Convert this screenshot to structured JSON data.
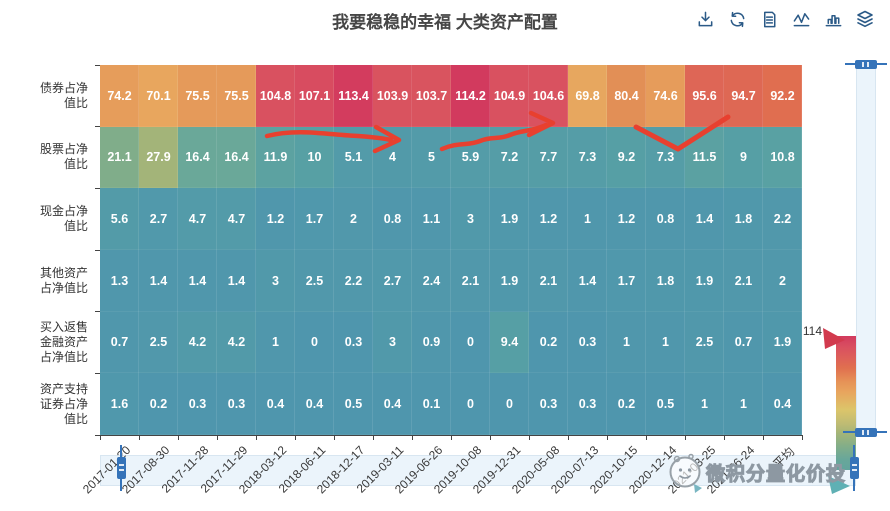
{
  "title": "我要稳稳的幸福 大类资产配置",
  "toolbar": {
    "icons": [
      "save-as-image",
      "restore",
      "data-view",
      "switch-to-line",
      "switch-to-bar",
      "stack"
    ]
  },
  "chart_data": {
    "type": "heatmap",
    "title": "我要稳稳的幸福 大类资产配置",
    "x_labels": [
      "2017-01-20",
      "2017-08-30",
      "2017-11-28",
      "2017-11-29",
      "2018-03-12",
      "2018-06-11",
      "2018-12-17",
      "2019-03-11",
      "2019-06-26",
      "2019-10-08",
      "2019-12-31",
      "2020-05-08",
      "2020-07-13",
      "2020-10-15",
      "2020-12-14",
      "2021-03-25",
      "2021-06-24",
      "平均"
    ],
    "rows": [
      {
        "label": "债券占净值比",
        "values": [
          74.2,
          70.1,
          75.5,
          75.5,
          104.8,
          107.1,
          113.4,
          103.9,
          103.7,
          114.2,
          104.9,
          104.6,
          69.8,
          80.4,
          74.6,
          95.6,
          94.7,
          92.2
        ]
      },
      {
        "label": "股票占净值比",
        "values": [
          21.1,
          27.9,
          16.4,
          16.4,
          11.9,
          10,
          5.1,
          4,
          5,
          5.9,
          7.2,
          7.7,
          7.3,
          9.2,
          7.3,
          11.5,
          9,
          10.8
        ]
      },
      {
        "label": "现金占净值比",
        "values": [
          5.6,
          2.7,
          4.7,
          4.7,
          1.2,
          1.7,
          2,
          0.8,
          1.1,
          3,
          1.9,
          1.2,
          1,
          1.2,
          0.8,
          1.4,
          1.8,
          2.2
        ]
      },
      {
        "label": "其他资产占净值比",
        "values": [
          1.3,
          1.4,
          1.4,
          1.4,
          3,
          2.5,
          2.2,
          2.7,
          2.4,
          2.1,
          1.9,
          2.1,
          1.4,
          1.7,
          1.8,
          1.9,
          2.1,
          2
        ]
      },
      {
        "label": "买入返售金融资产占净值比",
        "values": [
          0.7,
          2.5,
          4.2,
          4.2,
          1,
          0,
          0.3,
          3,
          0.9,
          0,
          9.4,
          0.2,
          0.3,
          1,
          1,
          2.5,
          0.7,
          1.9
        ]
      },
      {
        "label": "资产支持证券占净值比",
        "values": [
          1.6,
          0.2,
          0.3,
          0.3,
          0.4,
          0.4,
          0.5,
          0.4,
          0.1,
          0,
          0,
          0.3,
          0.3,
          0.2,
          0.5,
          1,
          1,
          0.4
        ]
      }
    ],
    "visual_map": {
      "min": 0,
      "max": 114.2,
      "handle_label": "114",
      "position": "right",
      "colors_low_to_high": [
        "#4f96ad",
        "#68a79a",
        "#a6b577",
        "#dcc56a",
        "#e8a55e",
        "#e0704f",
        "#d23a5e"
      ]
    },
    "xlabel": "",
    "ylabel": "",
    "grid": false,
    "legend_position": "none"
  },
  "watermark": {
    "text": "微积分量化价投"
  },
  "colors": {
    "accent_blue": "#3573b9",
    "axis_text": "#333333",
    "annotation_red": "#e8402f",
    "title_text": "#464646",
    "toolbox_icon": "#2b5a87"
  }
}
